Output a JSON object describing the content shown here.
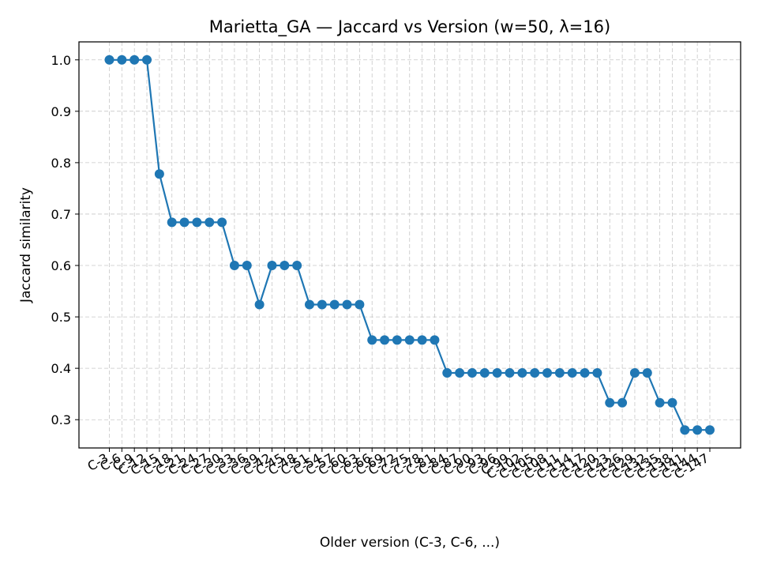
{
  "chart_data": {
    "type": "line",
    "title": "Marietta_GA — Jaccard vs Version (w=50, λ=16)",
    "xlabel": "Older version (C-3, C-6, ...)",
    "ylabel": "Jaccard similarity",
    "categories": [
      "C-3",
      "C-6",
      "C-9",
      "C-12",
      "C-15",
      "C-18",
      "C-21",
      "C-24",
      "C-27",
      "C-30",
      "C-33",
      "C-36",
      "C-39",
      "C-42",
      "C-45",
      "C-48",
      "C-51",
      "C-54",
      "C-57",
      "C-60",
      "C-63",
      "C-66",
      "C-69",
      "C-72",
      "C-75",
      "C-78",
      "C-81",
      "C-84",
      "C-87",
      "C-90",
      "C-93",
      "C-96",
      "C-99",
      "C-102",
      "C-105",
      "C-108",
      "C-111",
      "C-114",
      "C-117",
      "C-120",
      "C-123",
      "C-126",
      "C-129",
      "C-132",
      "C-135",
      "C-138",
      "C-141",
      "C-144",
      "C-147"
    ],
    "series": [
      {
        "color": "#1f77b4",
        "values": [
          1.0,
          1.0,
          1.0,
          1.0,
          0.778,
          0.684,
          0.684,
          0.684,
          0.684,
          0.684,
          0.6,
          0.6,
          0.524,
          0.6,
          0.6,
          0.6,
          0.524,
          0.524,
          0.524,
          0.524,
          0.524,
          0.455,
          0.455,
          0.455,
          0.455,
          0.455,
          0.455,
          0.391,
          0.391,
          0.391,
          0.391,
          0.391,
          0.391,
          0.391,
          0.391,
          0.391,
          0.391,
          0.391,
          0.391,
          0.391,
          0.333,
          0.333,
          0.391,
          0.391,
          0.333,
          0.333,
          0.28,
          0.28,
          0.28
        ]
      }
    ],
    "yticks": [
      "0.3",
      "0.4",
      "0.5",
      "0.6",
      "0.7",
      "0.8",
      "0.9",
      "1.0"
    ],
    "ylim": [
      0.245,
      1.035
    ],
    "grid": true,
    "legend": "none"
  }
}
